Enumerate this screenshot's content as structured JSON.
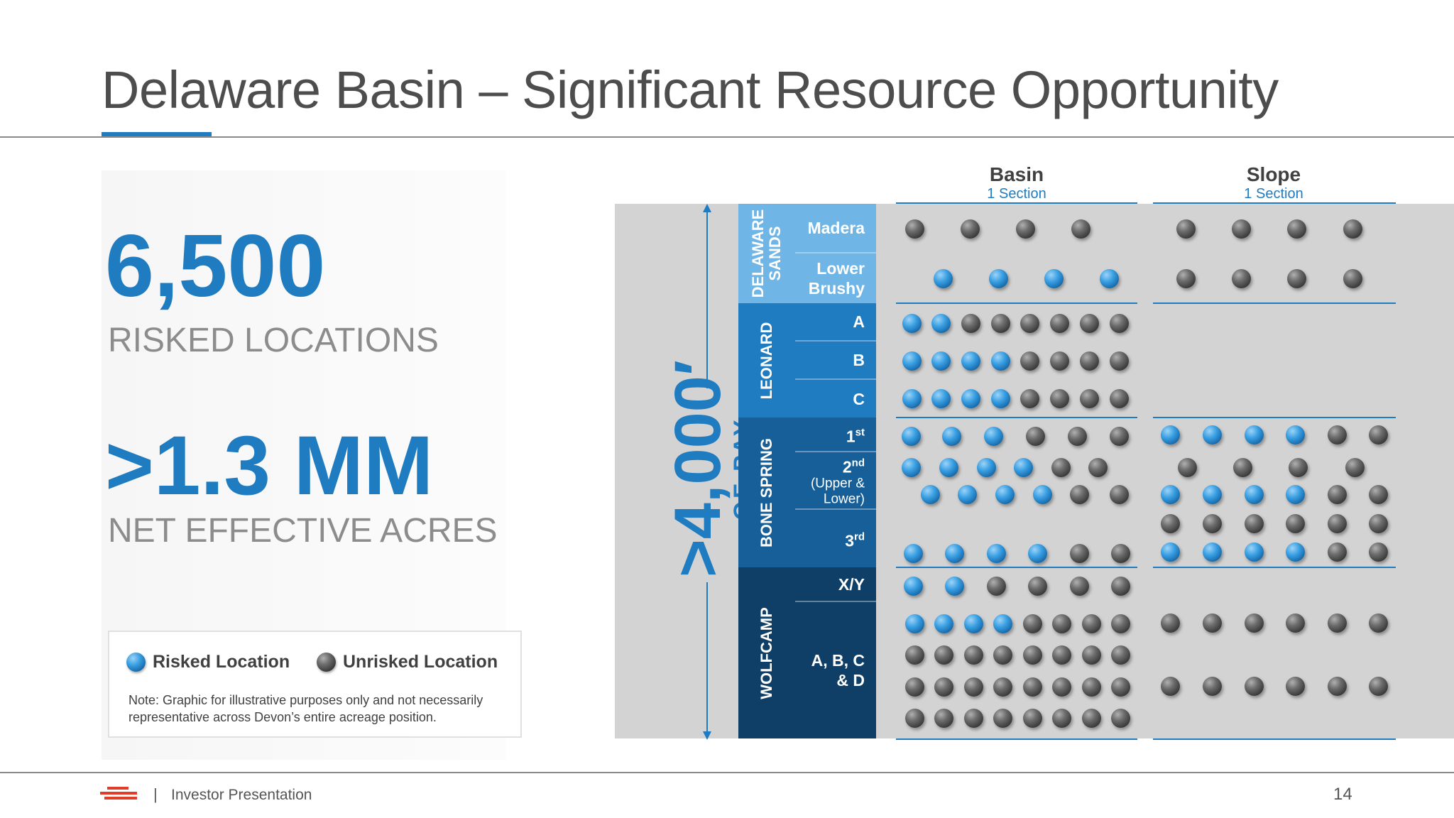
{
  "slide": {
    "title": "Delaware Basin – Significant Resource Opportunity",
    "stat1_value": "6,500",
    "stat1_label": "RISKED LOCATIONS",
    "stat2_value": ">1.3 MM",
    "stat2_label": "NET EFFECTIVE ACRES"
  },
  "legend": {
    "risked_label": "Risked Location",
    "unrisked_label": "Unrisked Location",
    "note": "Note: Graphic for illustrative purposes only and not necessarily representative across Devon’s entire acreage position."
  },
  "pay": {
    "big": ">4,000′",
    "small": "OF PAY"
  },
  "columns": {
    "basin": {
      "title": "Basin",
      "subtitle": "1 Section"
    },
    "slope": {
      "title": "Slope",
      "subtitle": "1 Section"
    }
  },
  "groups": [
    {
      "label_line1": "DELAWARE",
      "label_line2": "SANDS",
      "color": "#6fb6e6"
    },
    {
      "label_line1": "LEONARD",
      "label_line2": "",
      "color": "#1f7cc1"
    },
    {
      "label_line1": "BONE SPRING",
      "label_line2": "",
      "color": "#175f98"
    },
    {
      "label_line1": "WOLFCAMP",
      "label_line2": "",
      "color": "#0f3f66"
    }
  ],
  "zones": {
    "madera": "Madera",
    "lower_brushy_1": "Lower",
    "lower_brushy_2": "Brushy",
    "leonard_a": "A",
    "leonard_b": "B",
    "leonard_c": "C",
    "bs1_num": "1",
    "bs1_sup": "st",
    "bs2_num": "2",
    "bs2_sup": "nd",
    "bs2_sub1": "(Upper &",
    "bs2_sub2": "Lower)",
    "bs3_num": "3",
    "bs3_sup": "rd",
    "wc_xy": "X/Y",
    "wc_abcd_1": "A, B, C",
    "wc_abcd_2": "& D"
  },
  "dot_colors": {
    "risked": "blue",
    "unrisked": "gray"
  },
  "basin_rows": [
    {
      "zone": "Madera",
      "pattern": "GGGG"
    },
    {
      "zone": "Lower Brushy",
      "pattern": "BBBB"
    },
    {
      "zone": "Leonard A",
      "pattern": "BBGGGGGG"
    },
    {
      "zone": "Leonard B",
      "pattern": "BBBBGGGG"
    },
    {
      "zone": "Leonard C",
      "pattern": "BBBBGGGG"
    },
    {
      "zone": "Bone Spring 1st",
      "pattern": "BBBGGG"
    },
    {
      "zone": "Bone Spring 2nd upper",
      "pattern": "BBBBGG"
    },
    {
      "zone": "Bone Spring 2nd lower",
      "pattern": "BBBBGG"
    },
    {
      "zone": "Bone Spring 3rd",
      "pattern": "BBBBGG"
    },
    {
      "zone": "Wolfcamp X/Y",
      "pattern": "BBGGGG"
    },
    {
      "zone": "Wolfcamp A",
      "pattern": "BBBBGGGG"
    },
    {
      "zone": "Wolfcamp B",
      "pattern": "GGGGGGGG"
    },
    {
      "zone": "Wolfcamp C",
      "pattern": "GGGGGGGG"
    },
    {
      "zone": "Wolfcamp D",
      "pattern": "GGGGGGGG"
    }
  ],
  "slope_rows": [
    {
      "zone": "Madera",
      "pattern": "GGGG"
    },
    {
      "zone": "Lower Brushy",
      "pattern": "GGGG"
    },
    {
      "zone": "Bone Spring 1st",
      "pattern": "BBBBGG"
    },
    {
      "zone": "Bone Spring 2nd upper",
      "pattern": "GGGG"
    },
    {
      "zone": "Bone Spring 2nd lower",
      "pattern": "BBBBGG"
    },
    {
      "zone": "Bone Spring 2nd lower b",
      "pattern": "GGGGGG"
    },
    {
      "zone": "Bone Spring 3rd",
      "pattern": "BBBBGG"
    },
    {
      "zone": "Wolfcamp A",
      "pattern": "GGGGGG"
    },
    {
      "zone": "Wolfcamp C",
      "pattern": "GGGGGG"
    }
  ],
  "footer": {
    "separator": "|",
    "text": "Investor Presentation",
    "page": "14"
  }
}
